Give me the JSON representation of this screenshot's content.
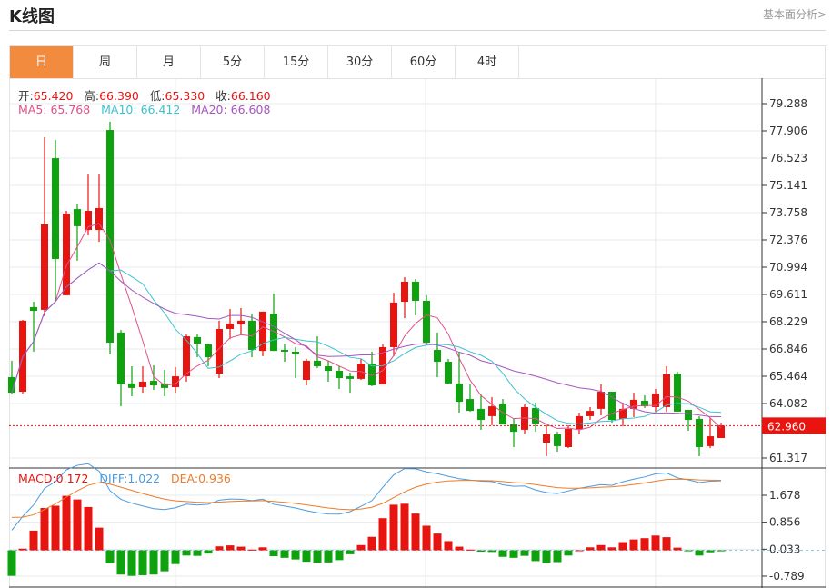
{
  "header": {
    "title": "K线图",
    "link": "基本面分析>"
  },
  "tabs": [
    {
      "label": "日",
      "active": true
    },
    {
      "label": "周"
    },
    {
      "label": "月"
    },
    {
      "label": "5分"
    },
    {
      "label": "15分"
    },
    {
      "label": "30分"
    },
    {
      "label": "60分"
    },
    {
      "label": "4时"
    }
  ],
  "ohlc_info": {
    "open_label": "开:",
    "open": "65.420",
    "high_label": "高:",
    "high": "66.390",
    "low_label": "低:",
    "low": "65.330",
    "close_label": "收:",
    "close": "66.160"
  },
  "ma_info": {
    "ma5": "MA5: 65.768",
    "ma10": "MA10: 66.412",
    "ma20": "MA20: 66.608"
  },
  "macd_info": {
    "macd": "MACD:0.172",
    "diff": "DIFF:1.022",
    "dea": "DEA:0.936"
  },
  "colors": {
    "up": "#e8140f",
    "down": "#0ea20e",
    "ma5": "#e0508a",
    "ma10": "#3cc3d0",
    "ma20": "#a855c0",
    "diff": "#4a9be0",
    "dea": "#f07b28",
    "accent": "#f28b3d"
  },
  "chart_data": [
    {
      "type": "candlestick",
      "ylim": [
        61.317,
        79.288
      ],
      "y_ticks": [
        "79.288",
        "77.906",
        "76.523",
        "75.141",
        "73.758",
        "72.376",
        "70.994",
        "69.611",
        "68.229",
        "66.846",
        "65.464",
        "64.082",
        "61.317"
      ],
      "current_price": "62.960",
      "ohlc": [
        [
          65.42,
          66.25,
          64.54,
          64.63
        ],
        [
          64.68,
          68.32,
          64.59,
          68.28
        ],
        [
          68.97,
          69.24,
          66.71,
          68.78
        ],
        [
          68.83,
          77.58,
          68.51,
          73.16
        ],
        [
          76.52,
          77.45,
          69.34,
          71.41
        ],
        [
          69.57,
          73.85,
          69.57,
          73.71
        ],
        [
          73.94,
          74.22,
          71.32,
          73.07
        ],
        [
          72.88,
          75.69,
          72.61,
          73.85
        ],
        [
          72.88,
          75.69,
          72.28,
          73.99
        ],
        [
          77.95,
          78.37,
          66.57,
          67.17
        ],
        [
          67.68,
          67.81,
          63.94,
          65.05
        ],
        [
          65.1,
          65.97,
          64.45,
          64.87
        ],
        [
          64.91,
          65.97,
          64.63,
          65.19
        ],
        [
          65.23,
          66.02,
          64.77,
          65.0
        ],
        [
          65.1,
          65.79,
          64.45,
          64.87
        ],
        [
          64.91,
          65.93,
          64.63,
          65.46
        ],
        [
          65.46,
          67.58,
          65.19,
          67.49
        ],
        [
          67.45,
          67.58,
          66.43,
          67.12
        ],
        [
          67.08,
          67.12,
          65.97,
          66.43
        ],
        [
          65.6,
          68.28,
          65.37,
          67.86
        ],
        [
          67.86,
          68.87,
          67.35,
          68.14
        ],
        [
          68.09,
          68.92,
          67.63,
          68.28
        ],
        [
          68.28,
          68.64,
          66.43,
          66.8
        ],
        [
          66.75,
          68.74,
          66.48,
          68.74
        ],
        [
          68.64,
          69.66,
          66.75,
          66.75
        ],
        [
          66.8,
          67.08,
          66.2,
          66.71
        ],
        [
          66.71,
          66.94,
          65.37,
          66.57
        ],
        [
          65.28,
          66.34,
          65.0,
          66.25
        ],
        [
          66.25,
          67.49,
          65.88,
          65.97
        ],
        [
          65.97,
          66.25,
          65.19,
          65.74
        ],
        [
          65.74,
          65.97,
          64.82,
          65.37
        ],
        [
          65.46,
          65.65,
          64.63,
          65.33
        ],
        [
          65.33,
          66.34,
          65.28,
          66.11
        ],
        [
          66.11,
          66.71,
          64.96,
          65.0
        ],
        [
          65.05,
          67.08,
          65.05,
          66.94
        ],
        [
          66.94,
          69.7,
          66.48,
          69.2
        ],
        [
          69.24,
          70.49,
          68.41,
          70.26
        ],
        [
          70.26,
          70.39,
          68.55,
          69.29
        ],
        [
          69.29,
          69.57,
          67.03,
          67.17
        ],
        [
          66.8,
          67.68,
          65.42,
          66.2
        ],
        [
          66.2,
          66.34,
          65.05,
          65.1
        ],
        [
          65.1,
          66.71,
          63.62,
          64.17
        ],
        [
          64.31,
          65.05,
          63.67,
          63.71
        ],
        [
          63.81,
          64.59,
          62.75,
          63.25
        ],
        [
          63.44,
          64.4,
          62.98,
          63.94
        ],
        [
          64.04,
          64.31,
          63.02,
          63.02
        ],
        [
          63.02,
          63.34,
          61.87,
          62.65
        ],
        [
          62.75,
          64.04,
          62.56,
          63.9
        ],
        [
          63.85,
          64.13,
          62.65,
          63.07
        ],
        [
          62.1,
          62.98,
          61.41,
          62.52
        ],
        [
          62.52,
          62.65,
          61.64,
          61.92
        ],
        [
          61.87,
          62.98,
          61.82,
          62.79
        ],
        [
          62.79,
          63.62,
          62.52,
          63.44
        ],
        [
          63.44,
          63.9,
          63.25,
          63.71
        ],
        [
          63.81,
          65.05,
          63.48,
          64.68
        ],
        [
          64.68,
          64.68,
          63.11,
          63.25
        ],
        [
          63.3,
          64.13,
          62.93,
          63.81
        ],
        [
          63.81,
          64.63,
          63.39,
          64.27
        ],
        [
          64.22,
          64.5,
          63.85,
          63.94
        ],
        [
          63.9,
          64.82,
          63.67,
          64.59
        ],
        [
          63.9,
          65.97,
          63.67,
          65.56
        ],
        [
          65.6,
          65.69,
          63.67,
          63.67
        ],
        [
          63.76,
          63.76,
          62.7,
          63.25
        ],
        [
          63.3,
          63.44,
          61.41,
          61.87
        ],
        [
          61.92,
          63.34,
          61.82,
          62.42
        ],
        [
          62.33,
          63.11,
          62.33,
          62.96
        ]
      ],
      "ma_periods": [
        5,
        10,
        20
      ]
    },
    {
      "type": "bar",
      "name": "MACD",
      "ylim": [
        -0.789,
        1.678
      ],
      "y_ticks": [
        "1.678",
        "0.856",
        "0.033",
        "-0.789"
      ],
      "values": [
        -0.78,
        0.05,
        0.6,
        1.29,
        1.36,
        1.66,
        1.55,
        1.32,
        0.69,
        -0.4,
        -0.74,
        -0.78,
        -0.76,
        -0.74,
        -0.64,
        -0.42,
        -0.16,
        -0.17,
        -0.1,
        0.12,
        0.15,
        0.11,
        0.02,
        0.09,
        -0.18,
        -0.23,
        -0.28,
        -0.35,
        -0.38,
        -0.37,
        -0.3,
        -0.12,
        0.16,
        0.41,
        0.98,
        1.39,
        1.42,
        1.12,
        0.75,
        0.51,
        0.28,
        0.11,
        0.02,
        -0.04,
        -0.05,
        -0.2,
        -0.23,
        -0.17,
        -0.33,
        -0.39,
        -0.36,
        -0.16,
        0.0,
        0.09,
        0.16,
        0.09,
        0.25,
        0.33,
        0.37,
        0.45,
        0.4,
        0.08,
        -0.03,
        -0.16,
        -0.06,
        -0.03
      ]
    }
  ]
}
